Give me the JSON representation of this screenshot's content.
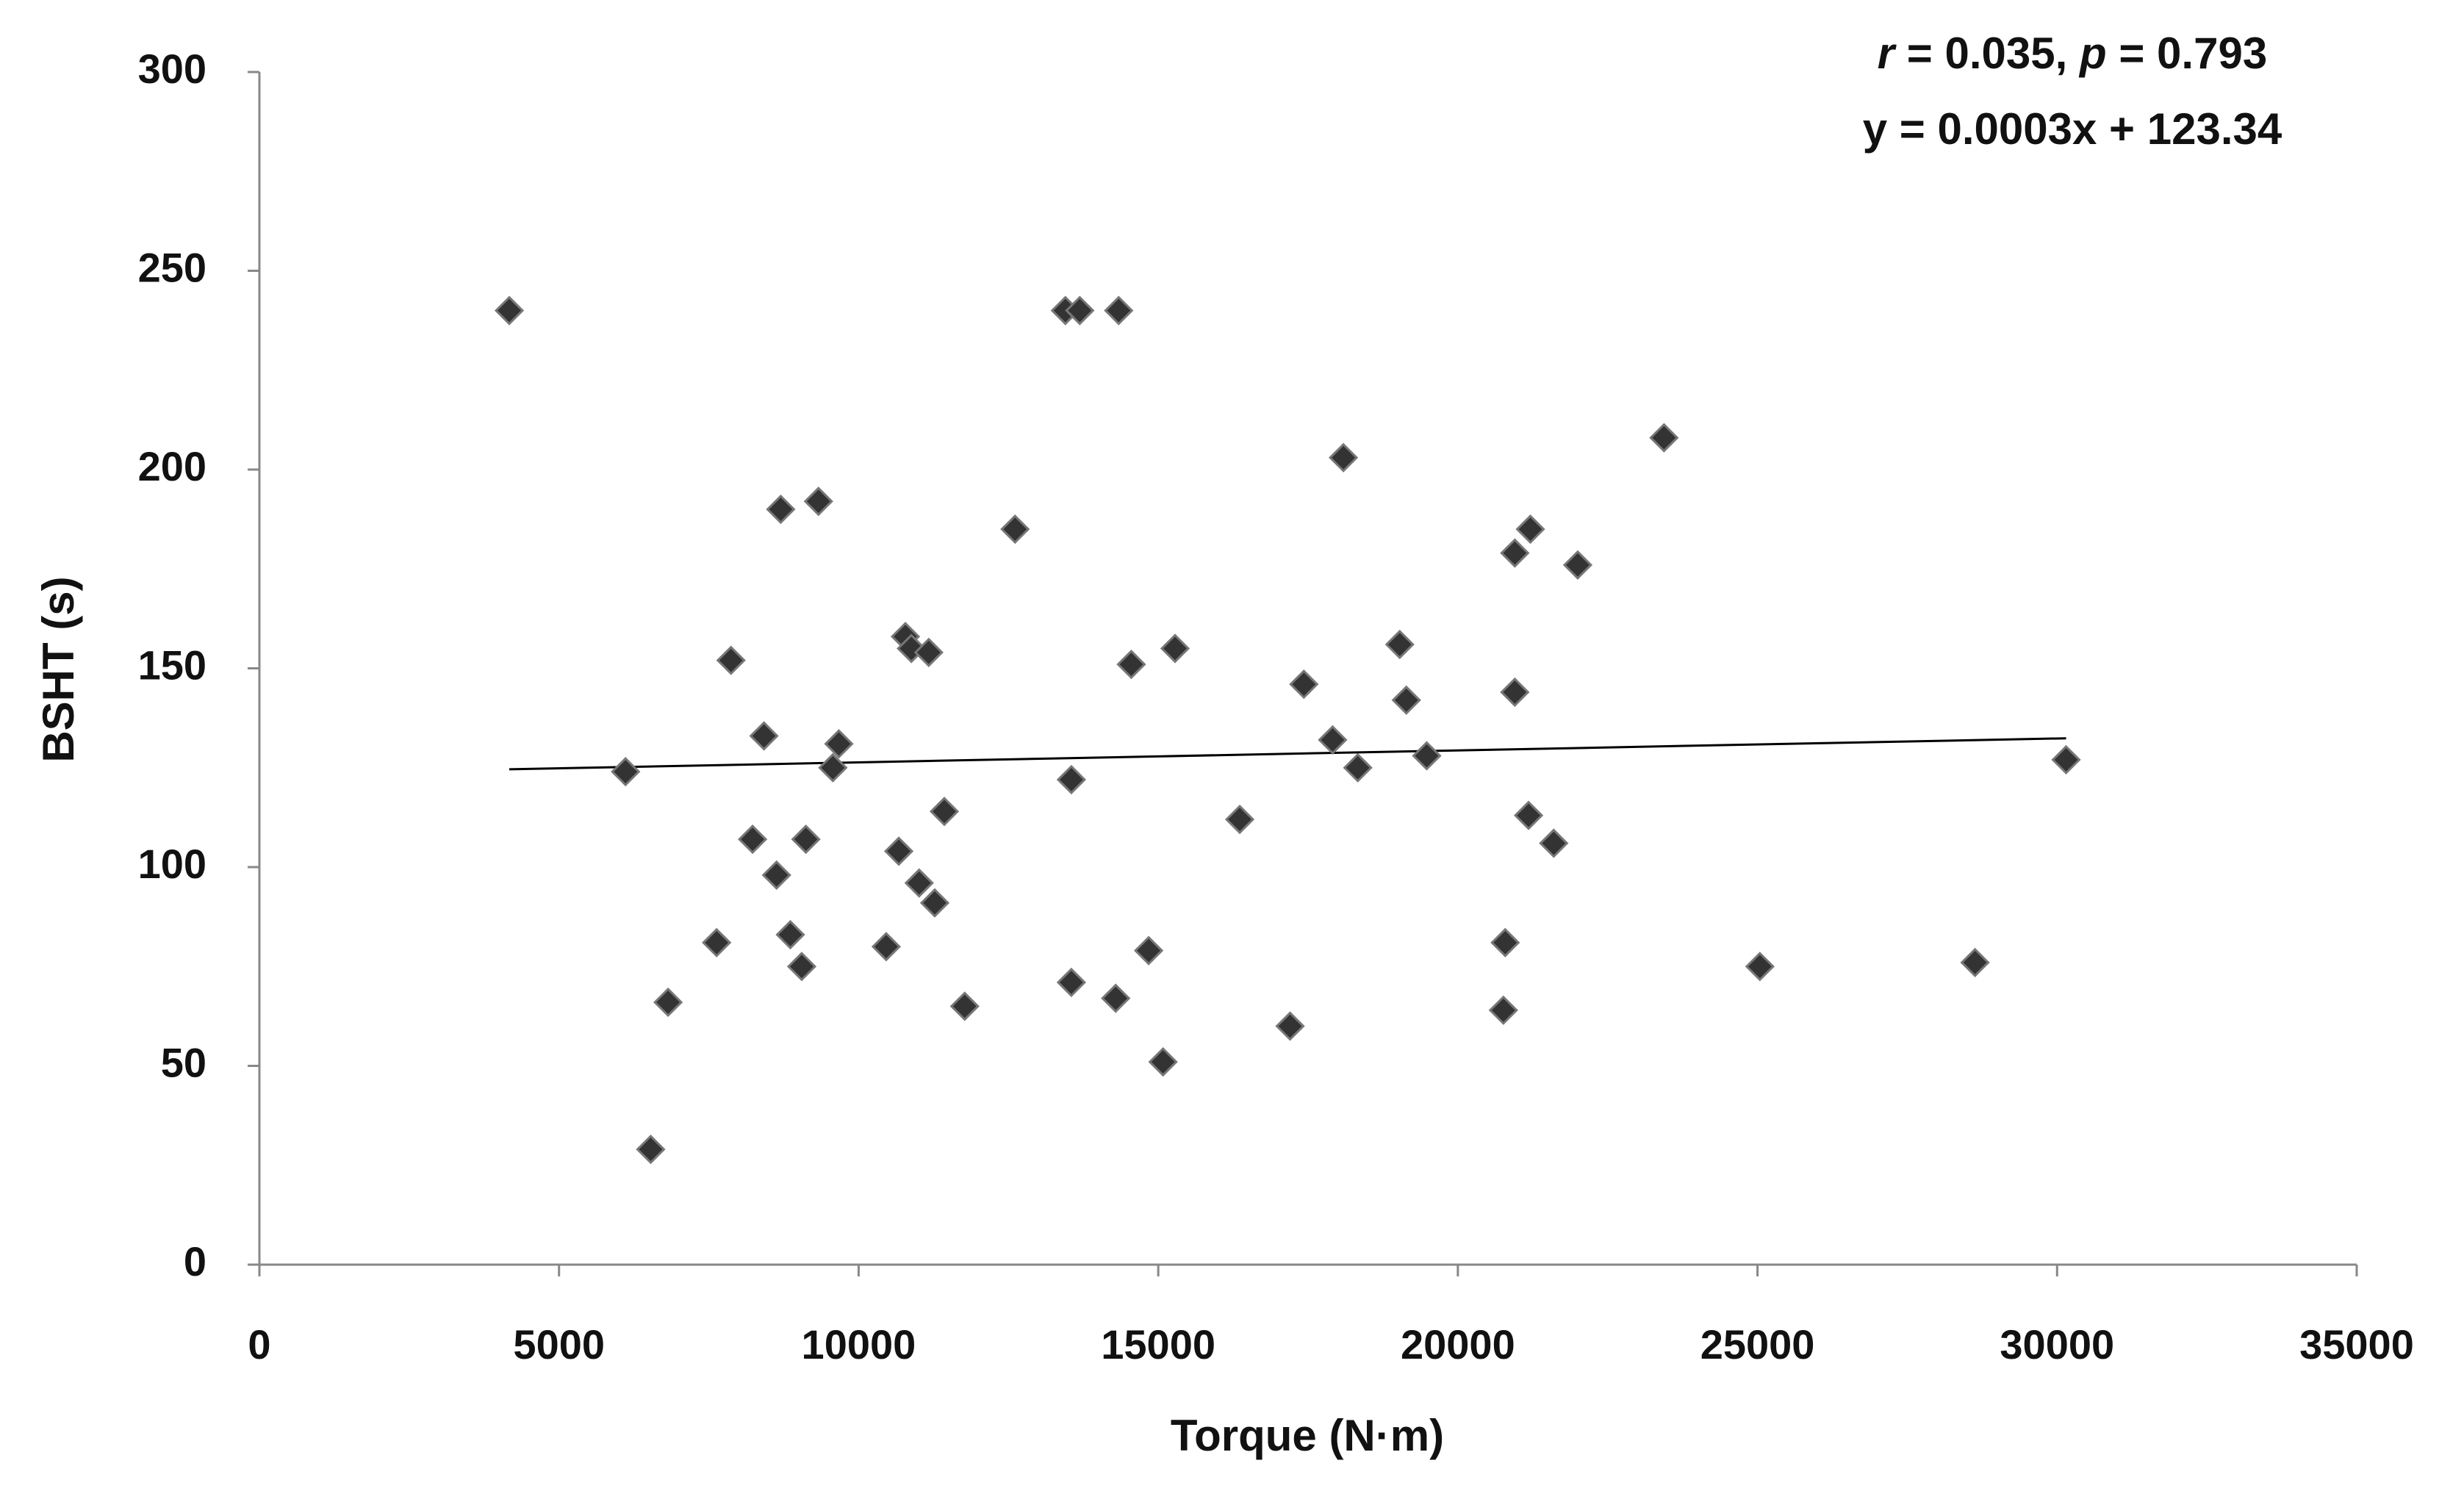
{
  "chart_data": {
    "type": "scatter",
    "x_label": "Torque (N·m)",
    "y_label": "BSHT (s)",
    "annotations": [
      {
        "parts": [
          "r",
          " = 0.035, ",
          "p",
          " = 0.793"
        ]
      },
      "y = 0.0003x + 123.34"
    ],
    "xlim": [
      0,
      35000
    ],
    "ylim": [
      0,
      300
    ],
    "xticks": [
      0,
      5000,
      10000,
      15000,
      20000,
      25000,
      30000,
      35000
    ],
    "yticks": [
      0,
      50,
      100,
      150,
      200,
      250,
      300
    ],
    "grid": false,
    "series": [
      {
        "color": "#333333",
        "x": [
          4170,
          6110,
          6530,
          6820,
          7630,
          7870,
          8230,
          8420,
          8630,
          8700,
          8860,
          9050,
          9120,
          9330,
          9570,
          9670,
          10460,
          10670,
          10780,
          10880,
          11010,
          11170,
          11270,
          11430,
          11770,
          12610,
          13450,
          13550,
          13550,
          13690,
          14290,
          14340,
          14550,
          14840,
          15080,
          15280,
          16360,
          17200,
          17430,
          17910,
          18090,
          18330,
          19030,
          19140,
          19480,
          20760,
          20790,
          20950,
          20950,
          21180,
          21210,
          21600,
          22000,
          23440,
          25040,
          28630,
          30150
        ],
        "values": [
          240,
          124,
          29,
          66,
          81,
          152,
          107,
          133,
          98,
          190,
          83,
          75,
          107,
          192,
          125,
          131,
          80,
          104,
          158,
          155,
          96,
          154,
          91,
          114,
          65,
          185,
          240,
          71,
          122,
          240,
          67,
          240,
          151,
          79,
          51,
          155,
          112,
          60,
          146,
          132,
          203,
          125,
          156,
          142,
          128,
          64,
          81,
          144,
          179,
          113,
          185,
          106,
          176,
          208,
          75,
          76,
          127
        ]
      }
    ],
    "trendline": {
      "color": "#000000",
      "x": [
        4170,
        30150
      ],
      "values": [
        124.6,
        132.4
      ]
    }
  }
}
